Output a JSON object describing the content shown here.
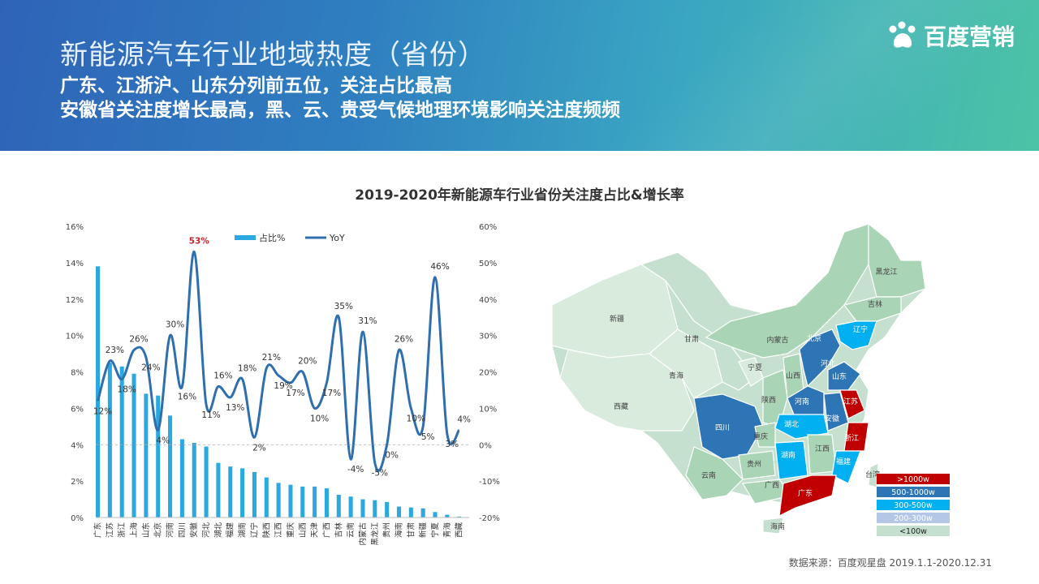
{
  "header": {
    "title": "新能源汽车行业地域热度（省份）",
    "subtitle1": "广东、江浙沪、山东分列前五位，关注占比最高",
    "subtitle2": "安徽省关注度增长最高，黑、云、贵受气候地理环境影响关注度频频",
    "logo_text": "百度营销"
  },
  "source_note": "数据来源：百度观星盘 2019.1.1-2020.12.31",
  "colors": {
    "bar": "#2aa8df",
    "line": "#2f6fae",
    "highlight": "#c0272d"
  },
  "chart_data": [
    {
      "type": "bar+line",
      "title": "2019-2020年新能源车行业省份关注度占比&增长率",
      "categories": [
        "广东",
        "江苏",
        "浙江",
        "上海",
        "山东",
        "北京",
        "河南",
        "四川",
        "安徽",
        "河北",
        "湖北",
        "福建",
        "湖南",
        "辽宁",
        "陕西",
        "江西",
        "重庆",
        "山西",
        "天津",
        "广西",
        "吉林",
        "云南",
        "内蒙古",
        "黑龙江",
        "贵州",
        "海南",
        "甘肃",
        "新疆",
        "宁夏",
        "青海",
        "西藏"
      ],
      "left_axis": {
        "range": [
          0,
          16
        ],
        "ticks": [
          "0%",
          "2%",
          "4%",
          "6%",
          "8%",
          "10%",
          "12%",
          "14%",
          "16%"
        ]
      },
      "right_axis": {
        "range": [
          -20,
          60
        ],
        "ticks": [
          "-20%",
          "-10%",
          "0%",
          "10%",
          "20%",
          "30%",
          "40%",
          "50%",
          "60%"
        ]
      },
      "legend": [
        "占比%",
        "YoY"
      ],
      "series": [
        {
          "name": "占比%",
          "axis": "left",
          "values": [
            13.8,
            8.5,
            8.3,
            7.9,
            6.8,
            6.7,
            5.6,
            4.3,
            4.1,
            3.9,
            3.0,
            2.8,
            2.7,
            2.5,
            2.2,
            1.9,
            1.8,
            1.7,
            1.7,
            1.6,
            1.25,
            1.15,
            1.0,
            0.95,
            0.85,
            0.6,
            0.55,
            0.5,
            0.3,
            0.15,
            0.05
          ]
        },
        {
          "name": "YoY",
          "axis": "right",
          "values": [
            12,
            23,
            18,
            26,
            24,
            4,
            30,
            16,
            53,
            11,
            16,
            13,
            18,
            2,
            21,
            19,
            17,
            20,
            10,
            17,
            35,
            -4,
            31,
            -5,
            0,
            26,
            10,
            5,
            46,
            3,
            4
          ]
        }
      ],
      "yoy_labels": [
        "12%",
        "23%",
        "18%",
        "26%",
        "24%",
        "4%",
        "30%",
        "16%",
        "53%",
        "11%",
        "16%",
        "13%",
        "18%",
        "2%",
        "21%",
        "19%",
        "17%",
        "20%",
        "10%",
        "17%",
        "35%",
        "-4%",
        "31%",
        "-5%",
        "0%",
        "26%",
        "10%",
        "5%",
        "46%",
        "3%",
        "4%"
      ]
    },
    {
      "type": "map",
      "legend": [
        {
          "label": ">1000w",
          "color": "#c00000"
        },
        {
          "label": "500-1000w",
          "color": "#2e75b6"
        },
        {
          "label": "300-500w",
          "color": "#00b0f0"
        },
        {
          "label": "200-300w",
          "color": "#b4c7e7"
        },
        {
          "label": "<100w",
          "color": "#c6e0cf"
        }
      ],
      "regions": [
        {
          "name": "新疆",
          "tier": 4
        },
        {
          "name": "西藏",
          "tier": 4
        },
        {
          "name": "青海",
          "tier": 4
        },
        {
          "name": "甘肃",
          "tier": 4
        },
        {
          "name": "内蒙古",
          "tier": 4
        },
        {
          "name": "宁夏",
          "tier": 4
        },
        {
          "name": "黑龙江",
          "tier": 4
        },
        {
          "name": "吉林",
          "tier": 4
        },
        {
          "name": "辽宁",
          "tier": 2
        },
        {
          "name": "北京",
          "tier": 1
        },
        {
          "name": "河北",
          "tier": 1
        },
        {
          "name": "山西",
          "tier": 4
        },
        {
          "name": "陕西",
          "tier": 4
        },
        {
          "name": "山东",
          "tier": 1
        },
        {
          "name": "河南",
          "tier": 1
        },
        {
          "name": "江苏",
          "tier": 0
        },
        {
          "name": "安徽",
          "tier": 1
        },
        {
          "name": "湖北",
          "tier": 2
        },
        {
          "name": "浙江",
          "tier": 0
        },
        {
          "name": "四川",
          "tier": 1
        },
        {
          "name": "重庆",
          "tier": 4
        },
        {
          "name": "湖南",
          "tier": 2
        },
        {
          "name": "江西",
          "tier": 4
        },
        {
          "name": "福建",
          "tier": 2
        },
        {
          "name": "贵州",
          "tier": 4
        },
        {
          "name": "云南",
          "tier": 4
        },
        {
          "name": "广西",
          "tier": 4
        },
        {
          "name": "广东",
          "tier": 0
        },
        {
          "name": "海南",
          "tier": 4
        },
        {
          "name": "台湾",
          "tier": 4
        }
      ]
    }
  ]
}
